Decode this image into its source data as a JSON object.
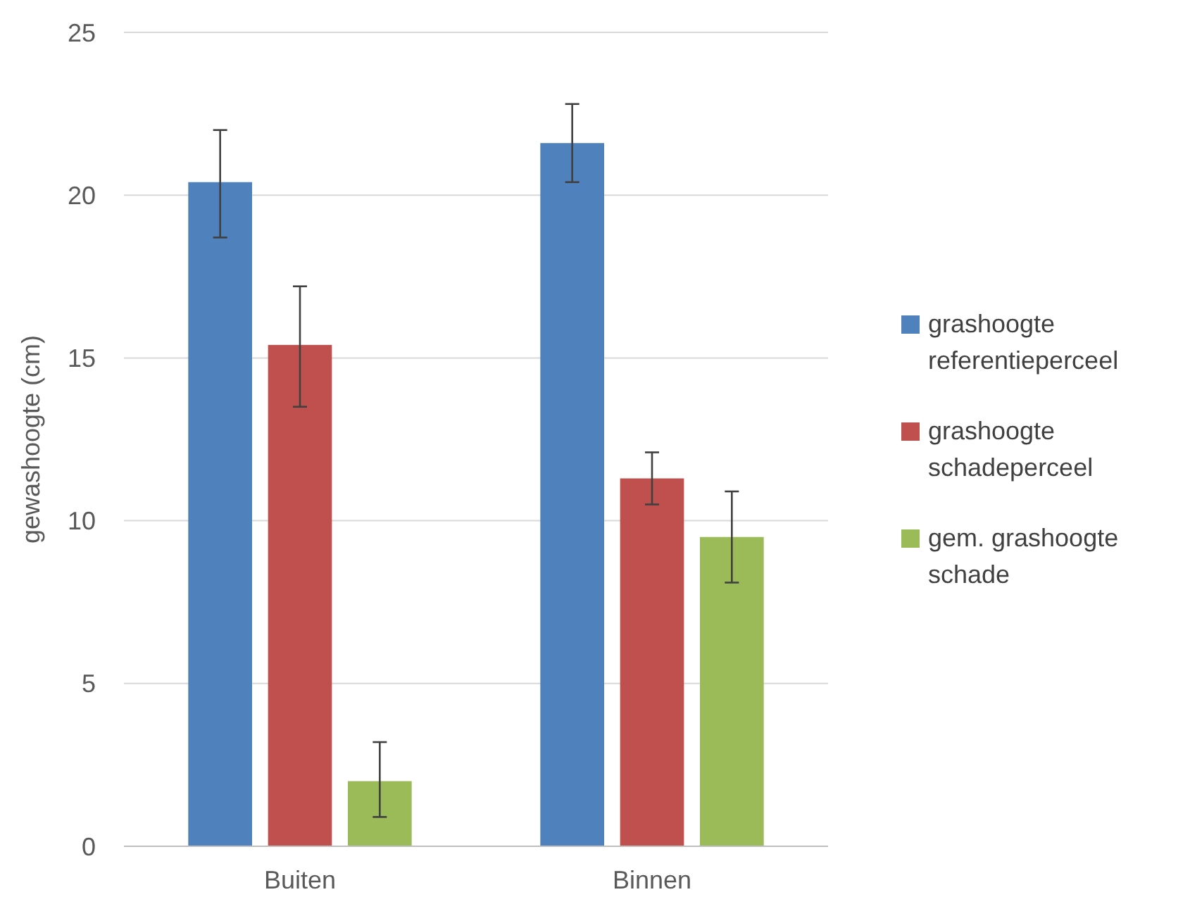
{
  "chart_data": {
    "type": "bar",
    "ylabel": "gewashoogte (cm)",
    "categories": [
      "Buiten",
      "Binnen"
    ],
    "series": [
      {
        "name": "grashoogte referentieperceel",
        "color": "#4f81bd",
        "values": [
          20.4,
          21.6
        ],
        "errors": [
          [
            18.7,
            22.0
          ],
          [
            20.4,
            22.8
          ]
        ]
      },
      {
        "name": "grashoogte schadeperceel",
        "color": "#c0504d",
        "values": [
          15.4,
          11.3
        ],
        "errors": [
          [
            13.5,
            17.2
          ],
          [
            10.5,
            12.1
          ]
        ]
      },
      {
        "name": "gem. grashoogte schade",
        "color": "#9bbb59",
        "values": [
          2.0,
          9.5
        ],
        "errors": [
          [
            0.9,
            3.2
          ],
          [
            8.1,
            10.9
          ]
        ]
      }
    ],
    "ylim": [
      0,
      25
    ],
    "yticks": [
      0,
      5,
      10,
      15,
      20,
      25
    ],
    "grid": "y",
    "legend": "right"
  }
}
